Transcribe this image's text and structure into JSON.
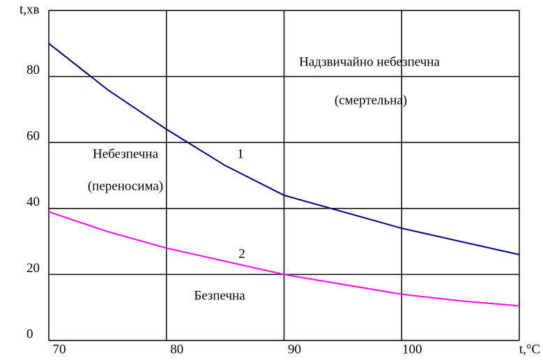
{
  "chart_data": {
    "type": "line",
    "x": [
      70,
      75,
      80,
      85,
      90,
      95,
      100,
      105,
      110
    ],
    "series": [
      {
        "name": "1",
        "color": "#000080",
        "values": [
          90,
          76,
          64,
          53,
          44,
          39,
          34,
          30,
          26
        ]
      },
      {
        "name": "2",
        "color": "#ff00ff",
        "values": [
          39,
          33,
          28,
          24,
          20,
          17,
          14,
          12,
          10.5
        ]
      }
    ],
    "xlim": [
      70,
      110
    ],
    "xticks": [
      70,
      80,
      90,
      100,
      {
        "value": 110,
        "label": "t,°C"
      }
    ],
    "ylim": [
      0,
      100
    ],
    "yticks": [
      0,
      20,
      40,
      60,
      80,
      {
        "value": 100,
        "label": "t,хв"
      }
    ],
    "grid": true,
    "annotations": [
      "Надзвичайно небезпечна",
      "(смертельна)",
      "Небезпечна",
      "(переносима)",
      "Безпечна"
    ]
  }
}
